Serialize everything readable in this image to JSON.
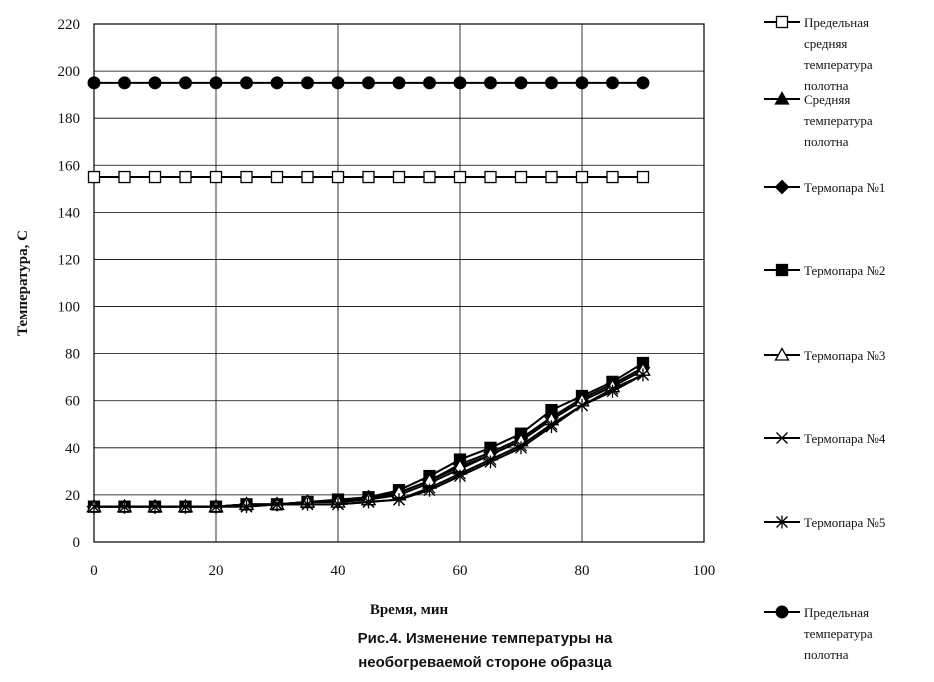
{
  "chart_data": {
    "type": "line",
    "xlabel": "Время, мин",
    "ylabel": "Температура, С",
    "xlim": [
      0,
      100
    ],
    "ylim": [
      0,
      220
    ],
    "xticks": [
      0,
      20,
      40,
      60,
      80,
      100
    ],
    "yticks": [
      0,
      20,
      40,
      60,
      80,
      100,
      120,
      140,
      160,
      180,
      200,
      220
    ],
    "grid": true,
    "legend_position": "right",
    "caption": [
      "Рис.4. Изменение температуры на",
      "необогреваемой стороне образца"
    ],
    "series": [
      {
        "name": "Предельная средняя температура полотна",
        "marker": "square-open",
        "x": [
          0,
          5,
          10,
          15,
          20,
          25,
          30,
          35,
          40,
          45,
          50,
          55,
          60,
          65,
          70,
          75,
          80,
          85,
          90
        ],
        "y": [
          155,
          155,
          155,
          155,
          155,
          155,
          155,
          155,
          155,
          155,
          155,
          155,
          155,
          155,
          155,
          155,
          155,
          155,
          155
        ]
      },
      {
        "name": "Средняя температура полотна",
        "marker": "triangle-filled",
        "x": [
          0,
          5,
          10,
          15,
          20,
          25,
          30,
          35,
          40,
          45,
          50,
          55,
          60,
          65,
          70,
          75,
          80,
          85,
          90
        ],
        "y": [
          15,
          15,
          15,
          15,
          15,
          16,
          16,
          17,
          17,
          18,
          20,
          25,
          31,
          37,
          43,
          52,
          60,
          66,
          73
        ]
      },
      {
        "name": "Термопара №1",
        "marker": "diamond-filled",
        "x": [
          0,
          5,
          10,
          15,
          20,
          25,
          30,
          35,
          40,
          45,
          50,
          55,
          60,
          65,
          70,
          75,
          80,
          85,
          90
        ],
        "y": [
          15,
          15,
          15,
          15,
          15,
          16,
          16,
          17,
          17,
          19,
          21,
          26,
          33,
          38,
          44,
          53,
          61,
          67,
          74
        ]
      },
      {
        "name": "Термопара №2",
        "marker": "square-filled",
        "x": [
          0,
          5,
          10,
          15,
          20,
          25,
          30,
          35,
          40,
          45,
          50,
          55,
          60,
          65,
          70,
          75,
          80,
          85,
          90
        ],
        "y": [
          15,
          15,
          15,
          15,
          15,
          16,
          16,
          17,
          18,
          19,
          22,
          28,
          35,
          40,
          46,
          56,
          62,
          68,
          76
        ]
      },
      {
        "name": "Термопара №3",
        "marker": "triangle-open",
        "x": [
          0,
          5,
          10,
          15,
          20,
          25,
          30,
          35,
          40,
          45,
          50,
          55,
          60,
          65,
          70,
          75,
          80,
          85,
          90
        ],
        "y": [
          15,
          15,
          15,
          15,
          15,
          16,
          16,
          17,
          17,
          18,
          21,
          26,
          32,
          37,
          43,
          52,
          60,
          66,
          73
        ]
      },
      {
        "name": "Термопара №4",
        "marker": "x",
        "x": [
          0,
          5,
          10,
          15,
          20,
          25,
          30,
          35,
          40,
          45,
          50,
          55,
          60,
          65,
          70,
          75,
          80,
          85,
          90
        ],
        "y": [
          15,
          15,
          15,
          15,
          15,
          15,
          16,
          16,
          16,
          17,
          18,
          23,
          29,
          35,
          41,
          50,
          58,
          65,
          71
        ]
      },
      {
        "name": "Термопара №5",
        "marker": "star",
        "x": [
          0,
          5,
          10,
          15,
          20,
          25,
          30,
          35,
          40,
          45,
          50,
          55,
          60,
          65,
          70,
          75,
          80,
          85,
          90
        ],
        "y": [
          15,
          15,
          15,
          15,
          15,
          15,
          16,
          16,
          16,
          17,
          18,
          22,
          28,
          34,
          40,
          49,
          58,
          64,
          71
        ]
      },
      {
        "name": "Предельная температура полотна",
        "marker": "circle-filled",
        "x": [
          0,
          5,
          10,
          15,
          20,
          25,
          30,
          35,
          40,
          45,
          50,
          55,
          60,
          65,
          70,
          75,
          80,
          85,
          90
        ],
        "y": [
          195,
          195,
          195,
          195,
          195,
          195,
          195,
          195,
          195,
          195,
          195,
          195,
          195,
          195,
          195,
          195,
          195,
          195,
          195
        ]
      }
    ],
    "legend_lines": [
      [
        "Предельная",
        "средняя",
        "температура",
        "полотна"
      ],
      [
        "Средняя",
        "температура",
        "полотна"
      ],
      [
        "Термопара №1"
      ],
      [
        "Термопара №2"
      ],
      [
        "Термопара №3"
      ],
      [
        "Термопара №4"
      ],
      [
        "Термопара №5"
      ],
      [
        "Предельная",
        "температура",
        "полотна"
      ]
    ]
  }
}
